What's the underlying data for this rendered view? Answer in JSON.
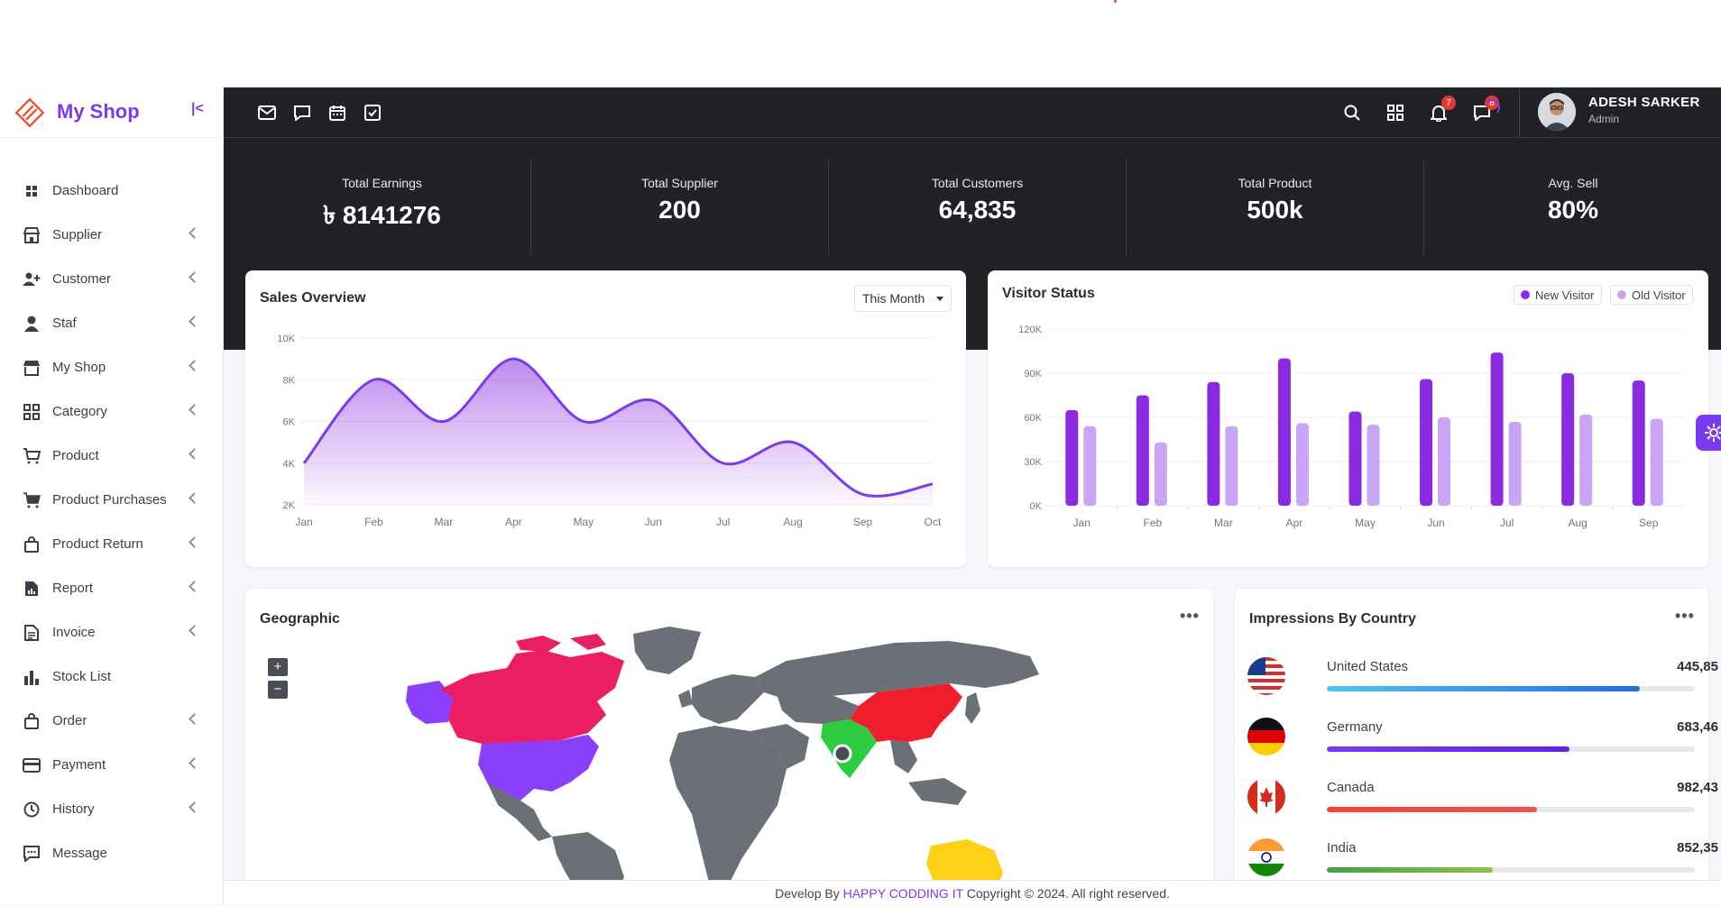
{
  "brand": {
    "name": "My Shop"
  },
  "sidebar": {
    "items": [
      {
        "label": "Dashboard",
        "icon": "grid-small-icon",
        "has_sub": false
      },
      {
        "label": "Supplier",
        "icon": "store-icon",
        "has_sub": true
      },
      {
        "label": "Customer",
        "icon": "user-plus-icon",
        "has_sub": true
      },
      {
        "label": "Staf",
        "icon": "user-icon",
        "has_sub": true
      },
      {
        "label": "My Shop",
        "icon": "shop-icon",
        "has_sub": true
      },
      {
        "label": "Category",
        "icon": "category-icon",
        "has_sub": true
      },
      {
        "label": "Product",
        "icon": "cart-icon",
        "has_sub": true
      },
      {
        "label": "Product Purchases",
        "icon": "cart-plus-icon",
        "has_sub": true
      },
      {
        "label": "Product Return",
        "icon": "bag-icon",
        "has_sub": true
      },
      {
        "label": "Report",
        "icon": "report-icon",
        "has_sub": true
      },
      {
        "label": "Invoice",
        "icon": "invoice-icon",
        "has_sub": true
      },
      {
        "label": "Stock List",
        "icon": "bar-chart-icon",
        "has_sub": false
      },
      {
        "label": "Order",
        "icon": "bag-icon",
        "has_sub": true
      },
      {
        "label": "Payment",
        "icon": "card-icon",
        "has_sub": true
      },
      {
        "label": "History",
        "icon": "history-icon",
        "has_sub": true
      },
      {
        "label": "Message",
        "icon": "message-icon",
        "has_sub": false
      }
    ]
  },
  "topbar": {
    "notifications_count": "7",
    "messages_count": "8",
    "user": {
      "name": "ADESH SARKER",
      "role": "Admin"
    }
  },
  "stats": [
    {
      "title": "Total Earnings",
      "value": "৳ 8141276"
    },
    {
      "title": "Total Supplier",
      "value": "200"
    },
    {
      "title": "Total Customers",
      "value": "64,835"
    },
    {
      "title": "Total Product",
      "value": "500k"
    },
    {
      "title": "Avg. Sell",
      "value": "80%"
    }
  ],
  "sales_overview": {
    "title": "Sales Overview",
    "period": "This Month"
  },
  "visitor_status": {
    "title": "Visitor Status",
    "legend_new": "New Visitor",
    "legend_old": "Old Visitor"
  },
  "geographic": {
    "title": "Geographic",
    "zoom_in": "+",
    "zoom_out": "−"
  },
  "impressions": {
    "title": "Impressions By Country",
    "countries": [
      {
        "name": "United States",
        "value": "445,85",
        "percent": 85,
        "color_from": "#4fc3f7",
        "color_to": "#1e6fe0"
      },
      {
        "name": "Germany",
        "value": "683,46",
        "percent": 66,
        "color_from": "#7c3aed",
        "color_to": "#6a1fd6"
      },
      {
        "name": "Canada",
        "value": "982,43",
        "percent": 57,
        "color_from": "#f44336",
        "color_to": "#ef5350"
      },
      {
        "name": "India",
        "value": "852,35",
        "percent": 45,
        "color_from": "#43a047",
        "color_to": "#8bc34a"
      }
    ]
  },
  "footer": {
    "prefix": "Develop By",
    "company": "HAPPY CODDING IT",
    "suffix": "Copyright © 2024. All right reserved."
  },
  "chart_data": [
    {
      "type": "area",
      "title": "Sales Overview",
      "categories": [
        "Jan",
        "Feb",
        "Mar",
        "Apr",
        "May",
        "Jun",
        "Jul",
        "Aug",
        "Sep",
        "Oct"
      ],
      "y_tick_labels": [
        "2K",
        "4K",
        "6K",
        "8K",
        "10K"
      ],
      "ylim": [
        2000,
        10000
      ],
      "series": [
        {
          "values": [
            4000,
            8000,
            6000,
            9000,
            6000,
            7000,
            4000,
            5000,
            2500,
            3000
          ]
        }
      ],
      "color": "#7c3aed",
      "grid": true
    },
    {
      "type": "bar",
      "title": "Visitor Status",
      "categories": [
        "Jan",
        "Feb",
        "Mar",
        "Apr",
        "May",
        "Jun",
        "Jul",
        "Aug",
        "Sep"
      ],
      "y_tick_labels": [
        "0K",
        "30K",
        "60K",
        "90K",
        "120K"
      ],
      "ylim": [
        0,
        120000
      ],
      "series": [
        {
          "name": "New Visitor",
          "values": [
            65000,
            75000,
            84000,
            100000,
            64000,
            86000,
            104000,
            90000,
            85000
          ],
          "color": "#8a2be2"
        },
        {
          "name": "Old Visitor",
          "values": [
            54000,
            43000,
            54000,
            56000,
            55000,
            60000,
            57000,
            62000,
            59000
          ],
          "color": "#c9a6f5"
        }
      ],
      "legend": "top-right",
      "grid": true
    }
  ]
}
